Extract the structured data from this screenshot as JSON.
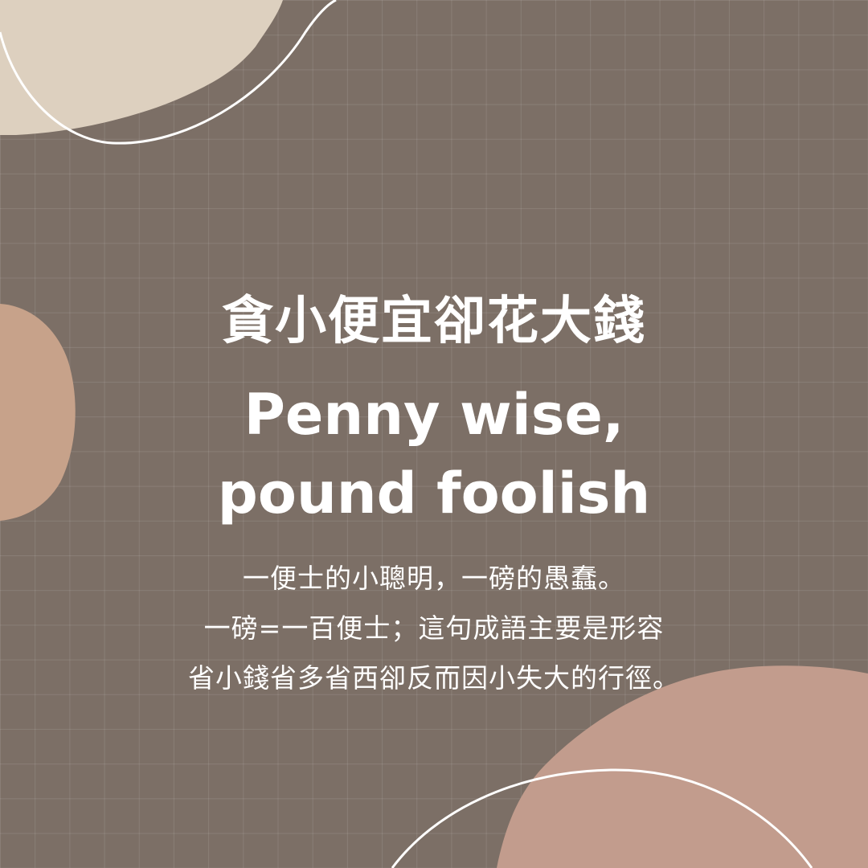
{
  "colors": {
    "background": "#7c6f66",
    "grid_line": "#8e8279",
    "blob_top_left": "#ddd0bf",
    "blob_left": "#c7a28a",
    "blob_bottom_right": "#c29c8d",
    "text": "#ffffff",
    "outline_stroke": "#ffffff"
  },
  "title_zh": "貪小便宜卻花大錢",
  "title_en_line1": "Penny wise,",
  "title_en_line2": "pound foolish",
  "body": {
    "line1": "一便士的小聰明，一磅的愚蠢。",
    "line2": "一磅=一百便士；這句成語主要是形容",
    "line3": "省小錢省多省西卻反而因小失大的行徑。"
  }
}
